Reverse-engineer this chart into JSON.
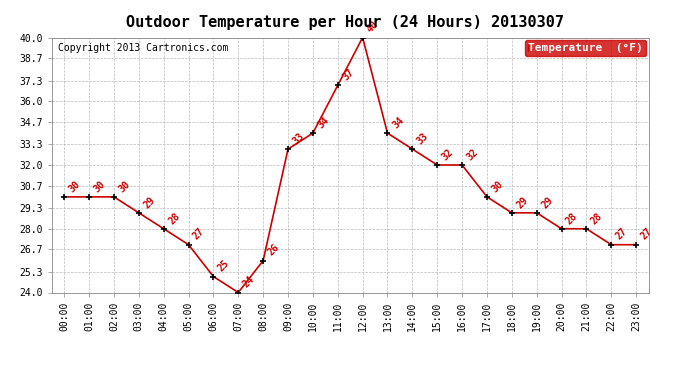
{
  "title": "Outdoor Temperature per Hour (24 Hours) 20130307",
  "copyright_text": "Copyright 2013 Cartronics.com",
  "legend_label": "Temperature  (°F)",
  "hours": [
    "00:00",
    "01:00",
    "02:00",
    "03:00",
    "04:00",
    "05:00",
    "06:00",
    "07:00",
    "08:00",
    "09:00",
    "10:00",
    "11:00",
    "12:00",
    "13:00",
    "14:00",
    "15:00",
    "16:00",
    "17:00",
    "18:00",
    "19:00",
    "20:00",
    "21:00",
    "22:00",
    "23:00"
  ],
  "temperatures": [
    30,
    30,
    30,
    29,
    28,
    27,
    25,
    24,
    26,
    33,
    34,
    37,
    40,
    34,
    33,
    32,
    32,
    30,
    29,
    29,
    28,
    28,
    27,
    27
  ],
  "ylim": [
    24.0,
    40.0
  ],
  "yticks": [
    24.0,
    25.3,
    26.7,
    28.0,
    29.3,
    30.7,
    32.0,
    33.3,
    34.7,
    36.0,
    37.3,
    38.7,
    40.0
  ],
  "line_color": "#cc0000",
  "marker_color": "#000000",
  "label_color": "#cc0000",
  "legend_bg": "#cc0000",
  "legend_text_color": "#ffffff",
  "background_color": "#ffffff",
  "grid_color": "#bbbbbb",
  "title_fontsize": 11,
  "copyright_fontsize": 7,
  "label_fontsize": 7,
  "tick_fontsize": 7,
  "legend_fontsize": 8
}
